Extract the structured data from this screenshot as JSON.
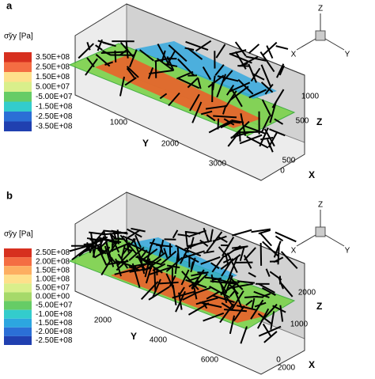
{
  "panels": [
    {
      "label": "a",
      "legend_title": "σ̃yy [Pa]",
      "legend_labels": [
        "3.50E+08",
        "2.50E+08",
        "1.50E+08",
        "5.00E+07",
        "-5.00E+07",
        "-1.50E+08",
        "-2.50E+08",
        "-3.50E+08"
      ],
      "axes": {
        "y_label": "Y",
        "z_label": "Z",
        "x_label": "X",
        "y_ticks": [
          "1000",
          "2000",
          "3000"
        ],
        "z_ticks": [
          "1000",
          "500"
        ],
        "x_ticks": [
          "500",
          "0"
        ]
      },
      "triad": [
        "Z",
        "X",
        "Y"
      ]
    },
    {
      "label": "b",
      "legend_title": "σ̃yy [Pa]",
      "legend_labels": [
        "2.50E+08",
        "2.00E+08",
        "1.50E+08",
        "1.00E+08",
        "5.00E+07",
        "0.00E+00",
        "-5.00E+07",
        "-1.00E+08",
        "-1.50E+08",
        "-2.00E+08",
        "-2.50E+08"
      ],
      "axes": {
        "y_label": "Y",
        "z_label": "Z",
        "x_label": "X",
        "y_ticks": [
          "2000",
          "4000",
          "6000"
        ],
        "z_ticks": [
          "2000",
          "1000"
        ],
        "x_ticks": [
          "2000",
          "0"
        ]
      },
      "triad": [
        "Z",
        "X",
        "Y"
      ]
    }
  ]
}
